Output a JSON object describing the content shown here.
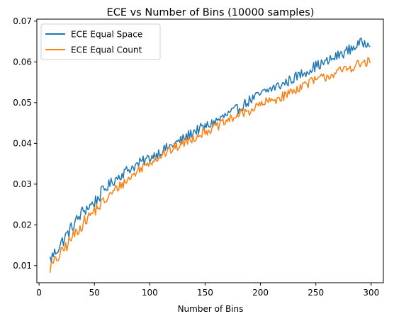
{
  "chart_data": {
    "type": "line",
    "title": "ECE vs Number of Bins (10000 samples)",
    "xlabel": "Number of Bins",
    "ylabel": "",
    "xlim": [
      -2,
      311
    ],
    "ylim": [
      0.0058,
      0.0705
    ],
    "xticks": [
      0,
      50,
      100,
      150,
      200,
      250,
      300
    ],
    "yticks": [
      0.01,
      0.02,
      0.03,
      0.04,
      0.05,
      0.06,
      0.07
    ],
    "ytick_labels": [
      "0.01",
      "0.02",
      "0.03",
      "0.04",
      "0.05",
      "0.06",
      "0.07"
    ],
    "grid": false,
    "legend_position": "top-left",
    "x_range": [
      10,
      299
    ],
    "series": [
      {
        "name": "ECE Equal Space",
        "color": "#1f77b4",
        "anchors_x": [
          10,
          20,
          30,
          40,
          50,
          60,
          70,
          80,
          90,
          100,
          110,
          120,
          130,
          140,
          150,
          160,
          170,
          180,
          190,
          200,
          210,
          220,
          230,
          240,
          250,
          260,
          270,
          280,
          290,
          299
        ],
        "anchors_y": [
          0.0115,
          0.0155,
          0.0195,
          0.0235,
          0.0255,
          0.029,
          0.0315,
          0.0335,
          0.035,
          0.0365,
          0.038,
          0.0395,
          0.041,
          0.043,
          0.044,
          0.0455,
          0.047,
          0.0485,
          0.0505,
          0.052,
          0.0535,
          0.0545,
          0.056,
          0.0575,
          0.059,
          0.06,
          0.0615,
          0.063,
          0.0645,
          0.065
        ],
        "noise": 0.0013
      },
      {
        "name": "ECE Equal Count",
        "color": "#ff7f0e",
        "anchors_x": [
          10,
          20,
          30,
          40,
          50,
          60,
          70,
          80,
          90,
          100,
          110,
          120,
          130,
          140,
          150,
          160,
          170,
          180,
          190,
          200,
          210,
          220,
          230,
          240,
          250,
          260,
          270,
          280,
          290,
          299
        ],
        "anchors_y": [
          0.0095,
          0.013,
          0.017,
          0.0205,
          0.0235,
          0.026,
          0.029,
          0.031,
          0.0335,
          0.0355,
          0.037,
          0.0385,
          0.04,
          0.0415,
          0.043,
          0.044,
          0.0455,
          0.047,
          0.048,
          0.0495,
          0.0505,
          0.0515,
          0.053,
          0.0545,
          0.0555,
          0.0565,
          0.0575,
          0.0585,
          0.0595,
          0.06
        ],
        "noise": 0.0012
      }
    ]
  }
}
